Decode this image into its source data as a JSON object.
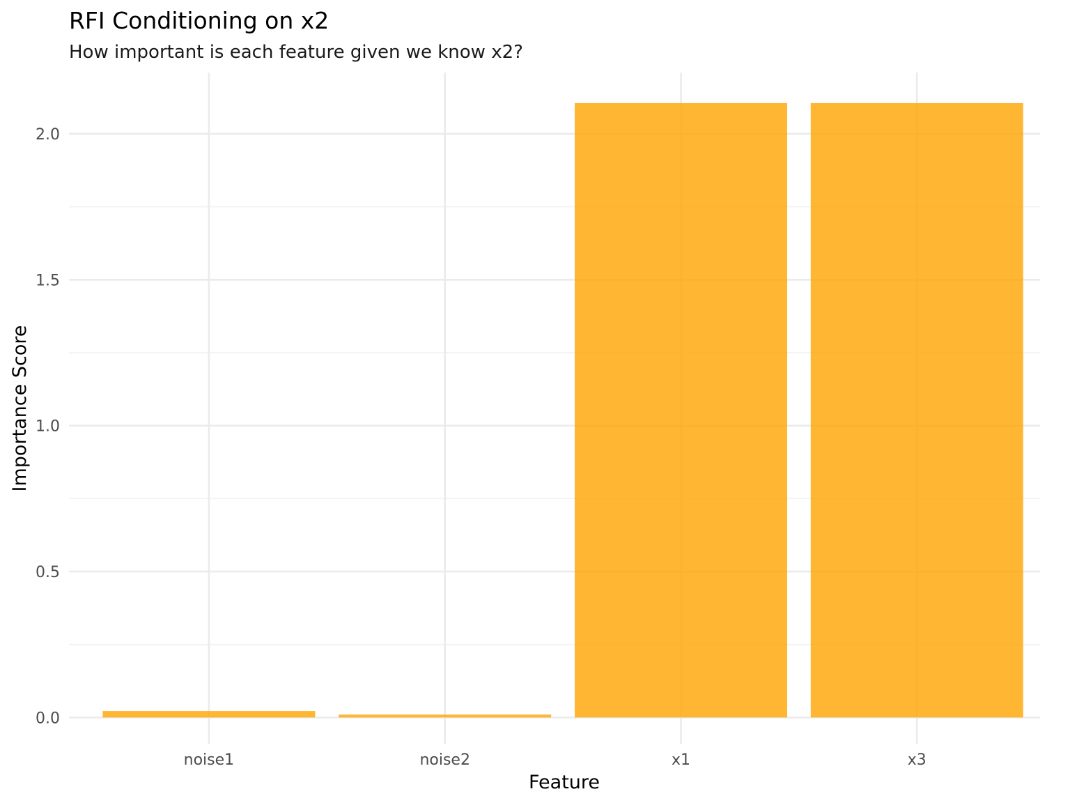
{
  "chart_data": {
    "type": "bar",
    "title": "RFI Conditioning on x2",
    "subtitle": "How important is each feature given we know x2?",
    "xlabel": "Feature",
    "ylabel": "Importance Score",
    "categories": [
      "noise1",
      "noise2",
      "x1",
      "x3"
    ],
    "values": [
      0.022,
      0.01,
      2.105,
      2.105
    ],
    "ylim": [
      -0.09,
      2.21
    ],
    "yticks": [
      0.0,
      0.5,
      1.0,
      1.5,
      2.0
    ],
    "ytick_labels": [
      "0.0",
      "0.5",
      "1.0",
      "1.5",
      "2.0"
    ],
    "grid": true,
    "legend": "none",
    "bar_color": "#FFA500",
    "bar_opacity": 0.8
  }
}
